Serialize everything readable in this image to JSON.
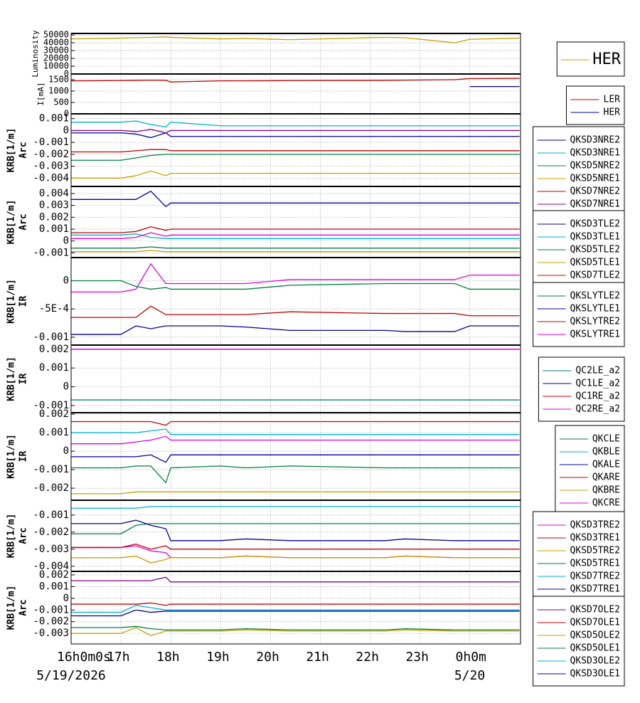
{
  "time_axis": {
    "x": [
      16,
      17,
      17.3,
      17.6,
      17.9,
      18,
      19,
      19.5,
      20.4,
      22.3,
      22.7,
      23.7,
      24,
      25
    ],
    "xlim": [
      16,
      25.02
    ],
    "xticks": [
      {
        "value": 16,
        "label": "16h0m0s"
      },
      {
        "value": 17,
        "label": "17h"
      },
      {
        "value": 18,
        "label": "18h"
      },
      {
        "value": 19,
        "label": "19h"
      },
      {
        "value": 20,
        "label": "20h"
      },
      {
        "value": 21,
        "label": "21h"
      },
      {
        "value": 22,
        "label": "22h"
      },
      {
        "value": 23,
        "label": "23h"
      },
      {
        "value": 24,
        "label": "0h0m"
      }
    ],
    "date_labels": [
      {
        "value": 16,
        "label": "5/19/2026"
      },
      {
        "value": 24,
        "label": "5/20"
      }
    ]
  },
  "chart_data": [
    {
      "type": "line",
      "ylabel": [
        "Luminosity"
      ],
      "ylim": [
        0,
        52000
      ],
      "yticks": [
        0,
        10000,
        20000,
        30000,
        40000,
        50000
      ],
      "series": [
        {
          "name": "HER",
          "color": "#c8a000",
          "values": [
            45000,
            46000,
            46500,
            47000,
            47500,
            47000,
            45000,
            45500,
            44000,
            47000,
            46500,
            40000,
            44500,
            46000
          ]
        }
      ]
    },
    {
      "type": "line",
      "ylabel": [
        "I[mA]"
      ],
      "ylim": [
        0,
        1750
      ],
      "yticks": [
        0,
        500,
        1000,
        1500
      ],
      "series": [
        {
          "name": "LER",
          "color": "#c00000",
          "values": [
            1450,
            1460,
            1470,
            1480,
            1470,
            1400,
            1450,
            1450,
            1460,
            1470,
            1480,
            1500,
            1550,
            1560
          ]
        },
        {
          "name": "HER",
          "color": "#0000a0",
          "values": [
            null,
            null,
            null,
            null,
            null,
            null,
            null,
            null,
            null,
            null,
            null,
            null,
            1200,
            1200
          ]
        }
      ]
    },
    {
      "type": "line",
      "ylabel": [
        "KRB[1/m]",
        "Arc"
      ],
      "ylim": [
        -0.0047,
        0.0014
      ],
      "yticks": [
        0.001,
        0,
        -0.001,
        -0.002,
        -0.003,
        -0.004
      ],
      "series": [
        {
          "name": "QKSD3NRE2",
          "color": "#0000a0",
          "values": [
            -0.0002,
            -0.0002,
            -0.0003,
            -0.0006,
            -0.0002,
            -0.0005,
            -0.0005,
            -0.0005,
            -0.0005,
            -0.0005,
            -0.0005,
            -0.0005,
            -0.0005,
            -0.0005
          ]
        },
        {
          "name": "QKSD3NRE1",
          "color": "#00b0d0",
          "values": [
            0.0007,
            0.0007,
            0.0008,
            0.0005,
            0.0003,
            0.0007,
            0.0004,
            0.0004,
            0.0004,
            0.0004,
            0.0004,
            0.0004,
            0.0004,
            0.0004
          ]
        },
        {
          "name": "QKSD5NRE2",
          "color": "#008040",
          "values": [
            -0.0025,
            -0.0025,
            -0.0023,
            -0.0021,
            -0.002,
            -0.002,
            -0.002,
            -0.002,
            -0.002,
            -0.002,
            -0.002,
            -0.002,
            -0.002,
            -0.002
          ]
        },
        {
          "name": "QKSD5NRE1",
          "color": "#c8a000",
          "values": [
            -0.004,
            -0.004,
            -0.0038,
            -0.0034,
            -0.0038,
            -0.0036,
            -0.0036,
            -0.0036,
            -0.0036,
            -0.0036,
            -0.0036,
            -0.0036,
            -0.0036,
            -0.0036
          ]
        },
        {
          "name": "QKSD7NRE2",
          "color": "#c00000",
          "values": [
            -0.0018,
            -0.0018,
            -0.0017,
            -0.0016,
            -0.0016,
            -0.0017,
            -0.0017,
            -0.0017,
            -0.0017,
            -0.0017,
            -0.0017,
            -0.0017,
            -0.0017,
            -0.0017
          ]
        },
        {
          "name": "QKSD7NRE1",
          "color": "#800080",
          "values": [
            0,
            0,
            -0.0001,
            0.0001,
            -0.0002,
            0,
            0,
            0,
            0,
            0,
            0,
            0,
            0,
            0
          ]
        }
      ]
    },
    {
      "type": "line",
      "ylabel": [
        "KRB[1/m]",
        "Arc"
      ],
      "ylim": [
        -0.0014,
        0.0046
      ],
      "yticks": [
        0.004,
        0.003,
        0.002,
        0.001,
        0,
        -0.001
      ],
      "series": [
        {
          "name": "QKSD3TLE2",
          "color": "#0000a0",
          "values": [
            0.0035,
            0.0035,
            0.0035,
            0.0042,
            0.0029,
            0.0032,
            0.0032,
            0.0032,
            0.0032,
            0.0032,
            0.0032,
            0.0032,
            0.0032,
            0.0032
          ]
        },
        {
          "name": "QKSD3TLE1",
          "color": "#00b0d0",
          "values": [
            0.0005,
            0.0005,
            0.0006,
            0.0003,
            0.0002,
            0.0002,
            0.0002,
            0.0002,
            0.0002,
            0.0002,
            0.0002,
            0.0002,
            0.0002,
            0.0002
          ]
        },
        {
          "name": "QKSD5TLE2",
          "color": "#008040",
          "values": [
            -0.0006,
            -0.0006,
            -0.0006,
            -0.0005,
            -0.0006,
            -0.0006,
            -0.0006,
            -0.0006,
            -0.0006,
            -0.0006,
            -0.0006,
            -0.0006,
            -0.0006,
            -0.0006
          ]
        },
        {
          "name": "QKSD5TLE1",
          "color": "#c8a000",
          "values": [
            -0.0009,
            -0.0009,
            -0.0009,
            -0.0008,
            -0.0009,
            -0.0009,
            -0.0009,
            -0.0009,
            -0.0009,
            -0.0009,
            -0.0009,
            -0.0009,
            -0.0009,
            -0.0009
          ]
        },
        {
          "name": "QKSD7TLE2",
          "color": "#c00000",
          "values": [
            0.0007,
            0.0007,
            0.0008,
            0.0012,
            0.0009,
            0.001,
            0.001,
            0.001,
            0.001,
            0.001,
            0.001,
            0.001,
            0.001,
            0.001
          ]
        },
        {
          "name": "QKSD7TLE1",
          "color": "#e000e0",
          "values": [
            0.0002,
            0.0002,
            0.0003,
            0.0007,
            0.0004,
            0.0005,
            0.0005,
            0.0005,
            0.0005,
            0.0005,
            0.0005,
            0.0005,
            0.0005,
            0.0005
          ]
        }
      ]
    },
    {
      "type": "line",
      "ylabel": [
        "KRB[1/m]",
        "IR"
      ],
      "ylim": [
        -0.00114,
        0.00041
      ],
      "yticks": [
        0,
        {
          "value": -0.0005,
          "label": "-5E-4"
        },
        -0.001
      ],
      "series": [
        {
          "name": "QKSLYTLE2",
          "color": "#008040",
          "values": [
            0,
            0,
            -0.0001,
            -0.00015,
            -0.00012,
            -0.00015,
            -0.00015,
            -0.00015,
            -8e-05,
            -5e-05,
            -5e-05,
            -5e-05,
            -0.00015,
            -0.00015
          ]
        },
        {
          "name": "QKSLYTLE1",
          "color": "#0000a0",
          "values": [
            -0.00095,
            -0.00095,
            -0.0008,
            -0.00085,
            -0.0008,
            -0.0008,
            -0.0008,
            -0.00082,
            -0.00088,
            -0.00088,
            -0.0009,
            -0.0009,
            -0.0008,
            -0.0008
          ]
        },
        {
          "name": "QKSLYTRE2",
          "color": "#c00000",
          "values": [
            -0.00065,
            -0.00065,
            -0.00065,
            -0.00045,
            -0.0006,
            -0.0006,
            -0.0006,
            -0.0006,
            -0.00055,
            -0.00058,
            -0.00058,
            -0.00058,
            -0.00062,
            -0.00062
          ]
        },
        {
          "name": "QKSLYTRE1",
          "color": "#e000e0",
          "values": [
            -0.0002,
            -0.0002,
            -0.00015,
            0.0003,
            -5e-05,
            -5e-05,
            -5e-05,
            -5e-05,
            2e-05,
            2e-05,
            2e-05,
            2e-05,
            0.0001,
            0.0001
          ]
        }
      ]
    },
    {
      "type": "line",
      "ylabel": [
        "KRB[1/m]",
        "IR"
      ],
      "ylim": [
        -0.00138,
        0.00222
      ],
      "yticks": [
        0.002,
        0.001,
        0,
        -0.001
      ],
      "series": [
        {
          "name": "QC2LE_a2",
          "color": "#008080",
          "values": [
            -0.0007,
            -0.0007,
            -0.0007,
            -0.0007,
            -0.0007,
            -0.0007,
            -0.0007,
            -0.0007,
            -0.0007,
            -0.0007,
            -0.0007,
            -0.0007,
            -0.0007,
            -0.0007
          ]
        },
        {
          "name": "QC1LE_a2",
          "color": "#0000a0",
          "values": [
            0.002,
            0.002,
            0.002,
            0.002,
            0.002,
            0.002,
            0.002,
            0.002,
            0.002,
            0.002,
            0.002,
            0.002,
            0.002,
            0.002
          ]
        },
        {
          "name": "QC1RE_a2",
          "color": "#c00000",
          "values": [
            0.002,
            0.002,
            0.002,
            0.002,
            0.002,
            0.002,
            0.002,
            0.002,
            0.002,
            0.002,
            0.002,
            0.002,
            0.002,
            0.002
          ]
        },
        {
          "name": "QC2RE_a2",
          "color": "#e000e0",
          "values": [
            0.002,
            0.002,
            0.002,
            0.002,
            0.002,
            0.002,
            0.002,
            0.002,
            0.002,
            0.002,
            0.002,
            0.002,
            0.002,
            0.002
          ]
        }
      ]
    },
    {
      "type": "line",
      "ylabel": [
        "KRB[1/m]",
        "IR"
      ],
      "ylim": [
        -0.00265,
        0.00208
      ],
      "yticks": [
        0.002,
        0.001,
        0,
        -0.001,
        -0.002
      ],
      "series": [
        {
          "name": "QKCLE",
          "color": "#008040",
          "values": [
            -0.0009,
            -0.0009,
            -0.0008,
            -0.0008,
            -0.0017,
            -0.0009,
            -0.0008,
            -0.0009,
            -0.0008,
            -0.0009,
            -0.0009,
            -0.0009,
            -0.0009,
            -0.0009
          ]
        },
        {
          "name": "QKBLE",
          "color": "#00b0d0",
          "values": [
            0.001,
            0.001,
            0.001,
            0.0011,
            0.0012,
            0.0009,
            0.0009,
            0.0009,
            0.0009,
            0.0009,
            0.0009,
            0.0009,
            0.0009,
            0.0009
          ]
        },
        {
          "name": "QKALE",
          "color": "#0000a0",
          "values": [
            -0.0003,
            -0.0003,
            -0.0003,
            -0.0002,
            -0.0006,
            -0.0002,
            -0.0002,
            -0.0002,
            -0.0002,
            -0.0002,
            -0.0002,
            -0.0002,
            -0.0002,
            -0.0002
          ]
        },
        {
          "name": "QKARE",
          "color": "#c00000",
          "values": [
            0.0016,
            0.0016,
            0.0016,
            0.0016,
            0.0014,
            0.0016,
            0.0016,
            0.0016,
            0.0016,
            0.0016,
            0.0016,
            0.0016,
            0.0016,
            0.0016
          ]
        },
        {
          "name": "QKBRE",
          "color": "#c8a000",
          "values": [
            -0.0023,
            -0.0023,
            -0.0022,
            -0.0022,
            -0.0022,
            -0.0022,
            -0.0022,
            -0.0022,
            -0.0022,
            -0.0022,
            -0.0022,
            -0.0022,
            -0.0022,
            -0.0022
          ]
        },
        {
          "name": "QKCRE",
          "color": "#e000e0",
          "values": [
            0.0004,
            0.0004,
            0.0005,
            0.0006,
            0.0008,
            0.0006,
            0.0006,
            0.0006,
            0.0006,
            0.0006,
            0.0006,
            0.0006,
            0.0006,
            0.0006
          ]
        }
      ]
    },
    {
      "type": "line",
      "ylabel": [
        "KRB[1/m]",
        "Arc"
      ],
      "ylim": [
        -0.0043,
        -0.00013
      ],
      "yticks": [
        -0.001,
        -0.002,
        -0.003,
        -0.004
      ],
      "series": [
        {
          "name": "QKSD3TRE2",
          "color": "#e000e0",
          "values": [
            -0.0029,
            -0.0029,
            -0.0028,
            -0.0031,
            -0.0032,
            -0.0035,
            -0.0035,
            -0.0034,
            -0.0035,
            -0.0035,
            -0.0034,
            -0.0035,
            -0.0035,
            -0.0035
          ]
        },
        {
          "name": "QKSD3TRE1",
          "color": "#c00000",
          "values": [
            -0.0029,
            -0.0029,
            -0.0027,
            -0.003,
            -0.0028,
            -0.003,
            -0.003,
            -0.003,
            -0.003,
            -0.003,
            -0.003,
            -0.003,
            -0.003,
            -0.003
          ]
        },
        {
          "name": "QKSD5TRE2",
          "color": "#c8a000",
          "values": [
            -0.0035,
            -0.0035,
            -0.0034,
            -0.0038,
            -0.0036,
            -0.0035,
            -0.0035,
            -0.0034,
            -0.0035,
            -0.0035,
            -0.0034,
            -0.0035,
            -0.0035,
            -0.0035
          ]
        },
        {
          "name": "QKSD5TRE1",
          "color": "#008040",
          "values": [
            -0.0021,
            -0.0021,
            -0.0016,
            -0.0015,
            -0.0015,
            -0.0015,
            -0.0015,
            -0.0015,
            -0.0015,
            -0.0015,
            -0.0015,
            -0.0015,
            -0.0015,
            -0.0015
          ]
        },
        {
          "name": "QKSD7TRE2",
          "color": "#00b0d0",
          "values": [
            -0.0006,
            -0.0006,
            -0.0006,
            -0.0005,
            -0.0005,
            -0.0005,
            -0.0005,
            -0.0005,
            -0.0005,
            -0.0005,
            -0.0005,
            -0.0005,
            -0.0005,
            -0.0005
          ]
        },
        {
          "name": "QKSD7TRE1",
          "color": "#0000a0",
          "values": [
            -0.0015,
            -0.0015,
            -0.0013,
            -0.0016,
            -0.0018,
            -0.0025,
            -0.0025,
            -0.0024,
            -0.0025,
            -0.0025,
            -0.0024,
            -0.0025,
            -0.0025,
            -0.0025
          ]
        }
      ]
    },
    {
      "type": "line",
      "ylabel": [
        "KRB[1/m]",
        "Arc"
      ],
      "ylim": [
        -0.0039,
        0.0023
      ],
      "yticks": [
        0.002,
        0.001,
        0,
        -0.001,
        -0.002,
        -0.003
      ],
      "series": [
        {
          "name": "QKSD7OLE2",
          "color": "#800080",
          "values": [
            0.0015,
            0.0015,
            0.0015,
            0.0015,
            0.0018,
            0.0014,
            0.0014,
            0.0014,
            0.0014,
            0.0014,
            0.0014,
            0.0014,
            0.0014,
            0.0014
          ]
        },
        {
          "name": "QKSD7OLE1",
          "color": "#c00000",
          "values": [
            -0.0005,
            -0.0005,
            -0.0005,
            -0.0004,
            -0.0006,
            -0.0005,
            -0.0005,
            -0.0005,
            -0.0005,
            -0.0005,
            -0.0005,
            -0.0005,
            -0.0005,
            -0.0005
          ]
        },
        {
          "name": "QKSD5OLE2",
          "color": "#c8a000",
          "values": [
            -0.003,
            -0.003,
            -0.0025,
            -0.0032,
            -0.0028,
            -0.0028,
            -0.0028,
            -0.0027,
            -0.0028,
            -0.0028,
            -0.0027,
            -0.0028,
            -0.0028,
            -0.0028
          ]
        },
        {
          "name": "QKSD5OLE1",
          "color": "#008040",
          "values": [
            -0.0025,
            -0.0025,
            -0.0024,
            -0.0026,
            -0.0027,
            -0.0027,
            -0.0027,
            -0.0026,
            -0.0027,
            -0.0027,
            -0.0026,
            -0.0027,
            -0.0027,
            -0.0027
          ]
        },
        {
          "name": "QKSD3OLE2",
          "color": "#00b0d0",
          "values": [
            -0.0012,
            -0.0012,
            -0.0006,
            -0.0008,
            -0.001,
            -0.001,
            -0.001,
            -0.001,
            -0.001,
            -0.001,
            -0.001,
            -0.001,
            -0.001,
            -0.001
          ]
        },
        {
          "name": "QKSD3OLE1",
          "color": "#0000a0",
          "values": [
            -0.0015,
            -0.0015,
            -0.001,
            -0.0012,
            -0.0011,
            -0.0011,
            -0.0011,
            -0.0011,
            -0.0011,
            -0.0011,
            -0.0011,
            -0.0011,
            -0.0011,
            -0.0011
          ]
        }
      ]
    }
  ]
}
